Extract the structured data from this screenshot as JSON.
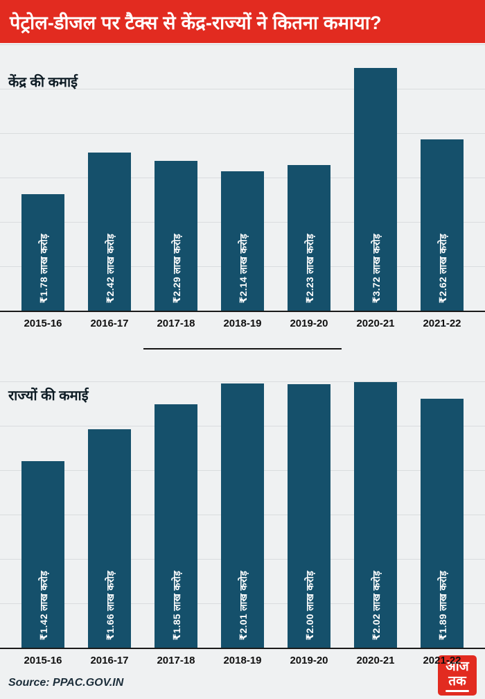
{
  "header": {
    "title": "पेट्रोल-डीजल पर टैक्स से केंद्र-राज्यों ने कितना कमाया?"
  },
  "colors": {
    "accent_red": "#e22b20",
    "bar_color": "#15506b",
    "background": "#eff1f2"
  },
  "chart_data": [
    {
      "type": "bar",
      "title": "केंद्र की कमाई",
      "categories": [
        "2015-16",
        "2016-17",
        "2017-18",
        "2018-19",
        "2019-20",
        "2020-21",
        "2021-22"
      ],
      "values": [
        1.78,
        2.42,
        2.29,
        2.14,
        2.23,
        3.72,
        2.62
      ],
      "value_labels": [
        "₹1.78 लाख करोड़",
        "₹2.42 लाख करोड़",
        "₹2.29 लाख करोड़",
        "₹2.14 लाख करोड़",
        "₹2.23 लाख करोड़",
        "₹3.72 लाख करोड़",
        "₹2.62 लाख करोड़"
      ],
      "xlabel": "",
      "ylabel": "",
      "ylim": [
        0,
        4.1
      ],
      "grid": true,
      "legend": "none",
      "bar_color": "#15506b"
    },
    {
      "type": "bar",
      "title": "राज्यों की कमाई",
      "categories": [
        "2015-16",
        "2016-17",
        "2017-18",
        "2018-19",
        "2019-20",
        "2020-21",
        "2021-22"
      ],
      "values": [
        1.42,
        1.66,
        1.85,
        2.01,
        2.0,
        2.02,
        1.89
      ],
      "value_labels": [
        "₹1.42 लाख करोड़",
        "₹1.66 लाख करोड़",
        "₹1.85 लाख करोड़",
        "₹2.01 लाख करोड़",
        "₹2.00 लाख करोड़",
        "₹2.02 लाख करोड़",
        "₹1.89 लाख करोड़"
      ],
      "xlabel": "",
      "ylabel": "",
      "ylim": [
        0,
        2.15
      ],
      "grid": true,
      "legend": "none",
      "bar_color": "#15506b"
    }
  ],
  "footer": {
    "source": "Source: PPAC.GOV.IN",
    "logo": {
      "line1": "आज",
      "line2": "तक",
      "color": "#e22b20"
    }
  }
}
